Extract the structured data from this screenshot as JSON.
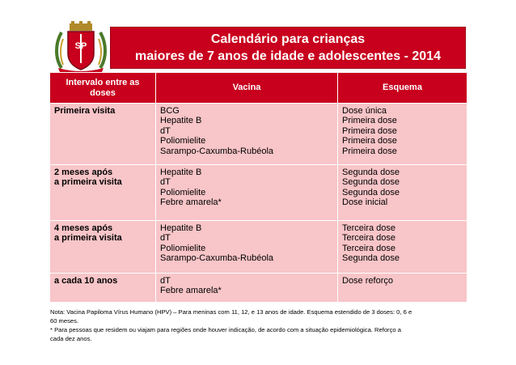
{
  "header": {
    "title_line1": "Calendário para crianças",
    "title_line2": "maiores de 7 anos de idade e adolescentes - 2014",
    "seal_text": "SP"
  },
  "table": {
    "columns": [
      "Intervalo entre as doses",
      "Vacina",
      "Esquema"
    ],
    "rows": [
      {
        "interval": [
          "Primeira visita"
        ],
        "vaccines": [
          "BCG",
          "Hepatite B",
          "dT",
          "Poliomielite",
          "Sarampo-Caxumba-Rubéola"
        ],
        "schemes": [
          "Dose única",
          "Primeira dose",
          "Primeira dose",
          "Primeira dose",
          "Primeira dose"
        ]
      },
      {
        "interval": [
          "2 meses após",
          "a primeira visita"
        ],
        "vaccines": [
          "Hepatite B",
          "dT",
          "Poliomielite",
          "Febre amarela*"
        ],
        "schemes": [
          "Segunda dose",
          "Segunda dose",
          "Segunda dose",
          "Dose inicial"
        ]
      },
      {
        "interval": [
          "4 meses após",
          "a primeira visita"
        ],
        "vaccines": [
          "Hepatite B",
          "dT",
          "Poliomielite",
          "Sarampo-Caxumba-Rubéola"
        ],
        "schemes": [
          "Terceira dose",
          "Terceira dose",
          "Terceira dose",
          "Segunda dose"
        ]
      },
      {
        "interval": [
          "a cada 10 anos"
        ],
        "vaccines": [
          "dT",
          "Febre amarela*"
        ],
        "schemes": [
          "Dose reforço"
        ]
      }
    ]
  },
  "notes": [
    "Nota:  Vacina Papiloma Vírus Humano (HPV) – Para meninas com 11, 12, e 13 anos de idade. Esquema estendido de 3 doses: 0, 6 e",
    "60 meses.",
    "* Para pessoas que residem ou viajam para regiões onde houver indicação, de acordo com a situação epidemiológica. Reforço a",
    "cada dez anos."
  ],
  "colors": {
    "header_red": "#c8001d",
    "row_pink": "#f8c5c8"
  }
}
